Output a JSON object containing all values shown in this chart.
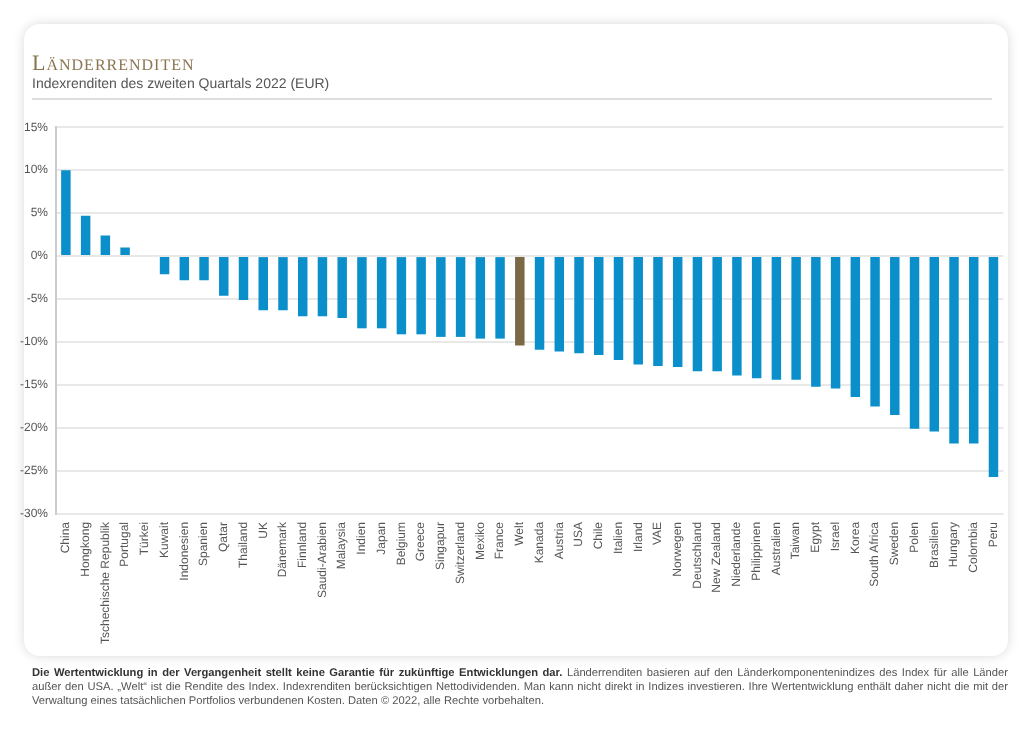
{
  "chart_data": {
    "type": "bar",
    "title": "Länderrenditen",
    "subtitle": "Indexrenditen des zweiten Quartals 2022 (EUR)",
    "categories": [
      "China",
      "Hongkong",
      "Tschechische Republik",
      "Portugal",
      "Türkei",
      "Kuwait",
      "Indonesien",
      "Spanien",
      "Qatar",
      "Thailand",
      "UK",
      "Dänemark",
      "Finnland",
      "Saudi-Arabien",
      "Malaysia",
      "Indien",
      "Japan",
      "Belgium",
      "Greece",
      "Singapur",
      "Switzerland",
      "Mexiko",
      "France",
      "Welt",
      "Kanada",
      "Austria",
      "USA",
      "Chile",
      "Italien",
      "Irland",
      "VAE",
      "Norwegen",
      "Deutschland",
      "New Zealand",
      "Niederlande",
      "Philippinen",
      "Australien",
      "Taiwan",
      "Egypt",
      "Israel",
      "Korea",
      "South Africa",
      "Sweden",
      "Polen",
      "Brasilien",
      "Hungary",
      "Colombia",
      "Peru"
    ],
    "values": [
      10,
      4.7,
      2.4,
      1.0,
      0,
      -2.1,
      -2.8,
      -2.8,
      -4.6,
      -5.1,
      -6.3,
      -6.3,
      -7.0,
      -7.0,
      -7.2,
      -8.4,
      -8.4,
      -9.1,
      -9.1,
      -9.4,
      -9.4,
      -9.6,
      -9.6,
      -10.4,
      -10.9,
      -11.1,
      -11.3,
      -11.5,
      -12.1,
      -12.6,
      -12.8,
      -12.9,
      -13.4,
      -13.4,
      -13.9,
      -14.2,
      -14.4,
      -14.4,
      -15.2,
      -15.4,
      -16.4,
      -17.5,
      -18.5,
      -20.1,
      -20.4,
      -21.8,
      -21.8,
      -25.7
    ],
    "colors": [
      "#0a8fcb",
      "#0a8fcb",
      "#0a8fcb",
      "#0a8fcb",
      "#0a8fcb",
      "#0a8fcb",
      "#0a8fcb",
      "#0a8fcb",
      "#0a8fcb",
      "#0a8fcb",
      "#0a8fcb",
      "#0a8fcb",
      "#0a8fcb",
      "#0a8fcb",
      "#0a8fcb",
      "#0a8fcb",
      "#0a8fcb",
      "#0a8fcb",
      "#0a8fcb",
      "#0a8fcb",
      "#0a8fcb",
      "#0a8fcb",
      "#0a8fcb",
      "#7b6845",
      "#0a8fcb",
      "#0a8fcb",
      "#0a8fcb",
      "#0a8fcb",
      "#0a8fcb",
      "#0a8fcb",
      "#0a8fcb",
      "#0a8fcb",
      "#0a8fcb",
      "#0a8fcb",
      "#0a8fcb",
      "#0a8fcb",
      "#0a8fcb",
      "#0a8fcb",
      "#0a8fcb",
      "#0a8fcb",
      "#0a8fcb",
      "#0a8fcb",
      "#0a8fcb",
      "#0a8fcb",
      "#0a8fcb",
      "#0a8fcb",
      "#0a8fcb",
      "#0a8fcb"
    ],
    "ylim": [
      -30,
      15
    ],
    "yticks": [
      {
        "value": -30,
        "label": "-30%"
      },
      {
        "value": -25,
        "label": "-25%"
      },
      {
        "value": -20,
        "label": "-20%"
      },
      {
        "value": -15,
        "label": "-15%"
      },
      {
        "value": -10,
        "label": "-10%"
      },
      {
        "value": -5,
        "label": "-5%"
      },
      {
        "value": 0,
        "label": "0%"
      },
      {
        "value": 5,
        "label": "5%"
      },
      {
        "value": 10,
        "label": "10%"
      },
      {
        "value": 15,
        "label": "15%"
      }
    ],
    "grid": "y",
    "legend": false,
    "annotations": [
      "Die Wertentwicklung in der Vergangenheit stellt keine Garantie für zukünftige Entwicklungen dar.",
      "Länderrenditen basieren auf den Länderkomponentenindizes des Index für alle Länder außer den USA. „Welt“ ist die Rendite des Index. Indexrenditen berücksichtigen Nettodividenden. Man kann nicht direkt in Indizes investieren. Ihre Wertentwicklung enthält daher nicht die mit der Verwaltung eines tatsächlichen Portfolios verbundenen Kosten. Daten © 2022, alle Rechte vorbehalten."
    ]
  }
}
